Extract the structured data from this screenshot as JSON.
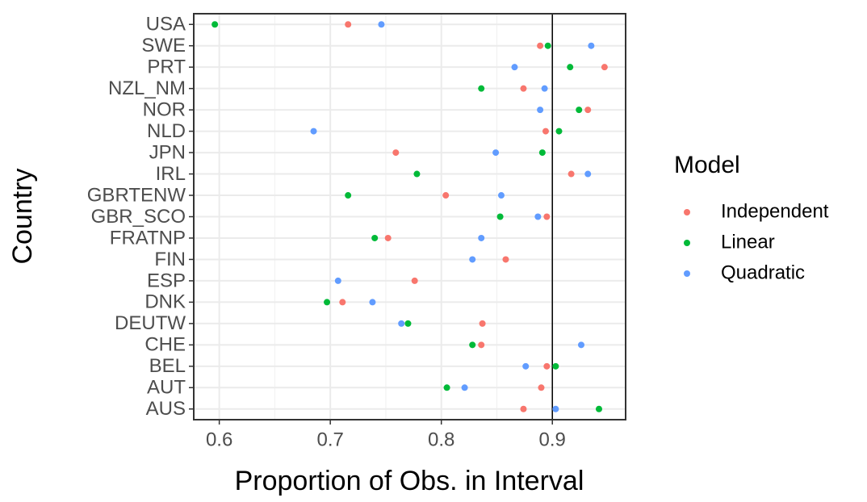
{
  "chart_data": {
    "type": "dot",
    "x_label": "Proportion of Obs. in Interval",
    "y_label": "Country",
    "legend_title": "Model",
    "legend_position": "right",
    "grid": true,
    "vline": 0.9,
    "categories": [
      "USA",
      "SWE",
      "PRT",
      "NZL_NM",
      "NOR",
      "NLD",
      "JPN",
      "IRL",
      "GBRTENW",
      "GBR_SCO",
      "FRATNP",
      "FIN",
      "ESP",
      "DNK",
      "DEUTW",
      "CHE",
      "BEL",
      "AUT",
      "AUS"
    ],
    "xlim": [
      0.577,
      0.966
    ],
    "xticks": [
      0.6,
      0.7,
      0.8,
      0.9
    ],
    "series": [
      {
        "name": "Independent",
        "color": "#F8766D",
        "values": [
          0.716,
          0.889,
          0.947,
          0.874,
          0.932,
          0.894,
          0.759,
          0.917,
          0.804,
          0.895,
          0.752,
          0.858,
          0.776,
          0.711,
          0.837,
          0.836,
          0.895,
          0.89,
          0.874
        ]
      },
      {
        "name": "Linear",
        "color": "#00BA38",
        "values": [
          0.596,
          0.896,
          0.916,
          0.836,
          0.924,
          0.906,
          0.891,
          0.778,
          0.716,
          0.853,
          0.74,
          null,
          null,
          0.697,
          0.77,
          0.828,
          0.903,
          0.805,
          0.942
        ]
      },
      {
        "name": "Quadratic",
        "color": "#619CFF",
        "values": [
          0.746,
          0.935,
          0.866,
          0.893,
          0.889,
          0.685,
          0.849,
          0.932,
          0.854,
          0.887,
          0.836,
          0.828,
          0.707,
          0.738,
          0.764,
          0.926,
          0.876,
          0.821,
          0.903
        ]
      }
    ]
  }
}
